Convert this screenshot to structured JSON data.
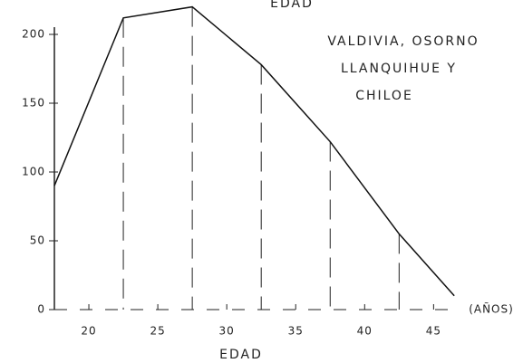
{
  "chart_data": {
    "type": "line",
    "title": "EDAD",
    "annotation": [
      "VALDIVIA, OSORNO",
      "LLANQUIHUE Y",
      "CHILOE"
    ],
    "x_label": "EDAD",
    "x_unit_label": "(AÑOS)",
    "x": [
      17.5,
      22.5,
      27.5,
      32.5,
      37.5,
      42.5,
      46.5
    ],
    "values": [
      90,
      212,
      220,
      178,
      122,
      55,
      10
    ],
    "color": "#111111",
    "xlim": [
      17.5,
      48
    ],
    "xticks": [
      20,
      25,
      30,
      35,
      40,
      45
    ],
    "ylim": [
      0,
      225
    ],
    "yticks": [
      0,
      50,
      100,
      150,
      200
    ],
    "drop_lines": true
  }
}
